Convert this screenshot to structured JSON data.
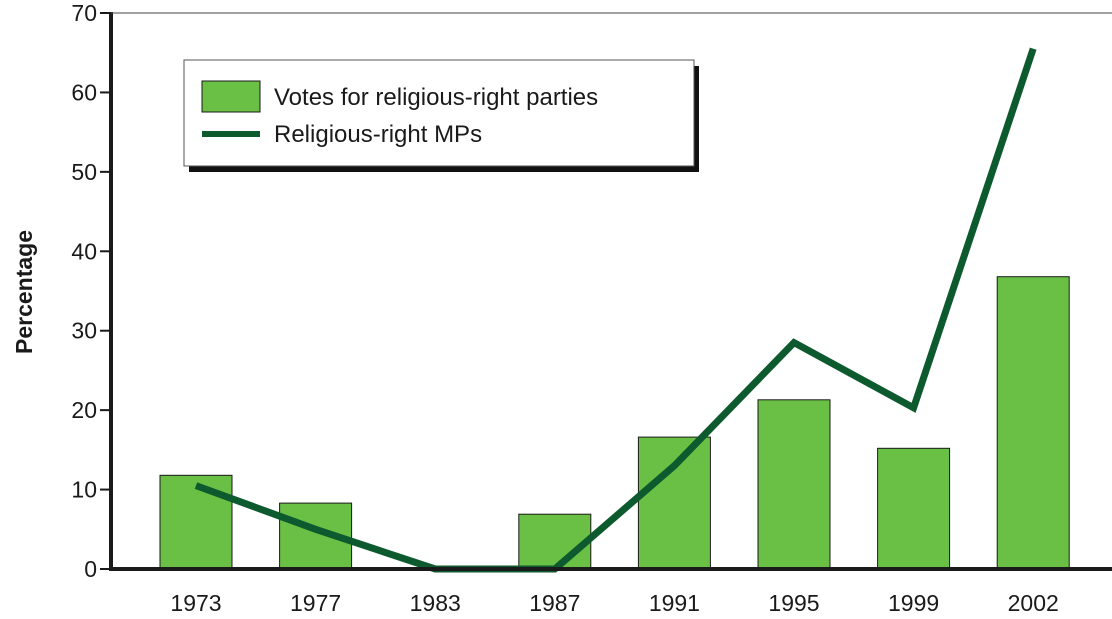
{
  "chart_data": {
    "type": "bar",
    "categories": [
      "1973",
      "1977",
      "1983",
      "1987",
      "1991",
      "1995",
      "1999",
      "2002"
    ],
    "series": [
      {
        "name": "Votes for religious-right parties",
        "type": "bar",
        "color": "#6abf45",
        "values": [
          11.8,
          8.3,
          0,
          6.9,
          16.6,
          21.3,
          15.2,
          36.8
        ]
      },
      {
        "name": "Religious-right MPs",
        "type": "line",
        "color": "#0d5a2e",
        "values": [
          10.5,
          5,
          0,
          0,
          13,
          28.5,
          20.3,
          65.5
        ]
      }
    ],
    "xlabel": "",
    "ylabel": "Percentage",
    "ylim": [
      0,
      70
    ],
    "yticks": [
      0,
      10,
      20,
      30,
      40,
      50,
      60,
      70
    ],
    "grid": false,
    "legend_position": "top-left"
  }
}
